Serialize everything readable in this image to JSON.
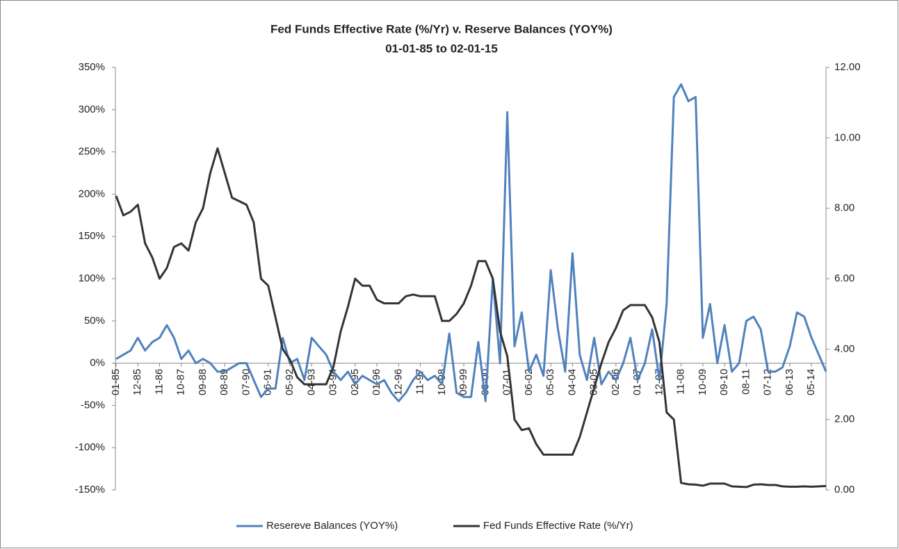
{
  "chart_data": {
    "type": "line",
    "title": "Fed Funds Effective Rate (%/Yr) v. Reserve Balances (YOY%)",
    "subtitle": "01-01-85 to 02-01-15",
    "categories": [
      "01-85",
      null,
      null,
      "12-85",
      null,
      null,
      "11-86",
      null,
      null,
      "10-87",
      null,
      null,
      "09-88",
      null,
      null,
      "08-89",
      null,
      null,
      "07-90",
      null,
      null,
      "06-91",
      null,
      null,
      "05-92",
      null,
      null,
      "04-93",
      null,
      null,
      "03-94",
      null,
      null,
      "02-95",
      null,
      null,
      "01-96",
      null,
      null,
      "12-96",
      null,
      null,
      "11-97",
      null,
      null,
      "10-98",
      null,
      null,
      "09-99",
      null,
      null,
      "08-00",
      null,
      null,
      "07-01",
      null,
      null,
      "06-02",
      null,
      null,
      "05-03",
      null,
      null,
      "04-04",
      null,
      null,
      "03-05",
      null,
      null,
      "02-06",
      null,
      null,
      "01-07",
      null,
      null,
      "12-07",
      null,
      null,
      "11-08",
      null,
      null,
      "10-09",
      null,
      null,
      "09-10",
      null,
      null,
      "08-11",
      null,
      null,
      "07-12",
      null,
      null,
      "06-13",
      null,
      null,
      "05-14",
      null,
      null
    ],
    "series": [
      {
        "name": "Resereve Balances (YOY%)",
        "color": "#4f81bd",
        "values": [
          5,
          10,
          15,
          30,
          15,
          25,
          30,
          45,
          30,
          5,
          15,
          0,
          5,
          0,
          -10,
          -10,
          -5,
          0,
          0,
          -20,
          -40,
          -30,
          -30,
          30,
          0,
          5,
          -20,
          30,
          20,
          10,
          -10,
          -20,
          -10,
          -25,
          -15,
          -20,
          -25,
          -20,
          -35,
          -45,
          -35,
          -20,
          -10,
          -20,
          -15,
          -25,
          35,
          -35,
          -40,
          -40,
          25,
          -45,
          100,
          0,
          297,
          20,
          60,
          -10,
          10,
          -15,
          110,
          40,
          -10,
          130,
          10,
          -20,
          30,
          -25,
          -10,
          -20,
          0,
          30,
          -20,
          0,
          40,
          -20,
          70,
          315,
          330,
          310,
          315,
          30,
          70,
          0,
          45,
          -10,
          0,
          50,
          55,
          40,
          -10,
          -10,
          -5,
          20,
          60,
          55,
          30,
          10,
          -10
        ]
      },
      {
        "name": "Fed Funds Effective Rate (%/Yr)",
        "color": "#333333",
        "axis": "y2",
        "values": [
          8.35,
          7.8,
          7.9,
          8.1,
          7.0,
          6.6,
          6.0,
          6.3,
          6.9,
          7.0,
          6.8,
          7.6,
          8.0,
          9.0,
          9.7,
          9.0,
          8.3,
          8.2,
          8.1,
          7.6,
          6.0,
          5.8,
          4.9,
          4.0,
          3.7,
          3.2,
          3.0,
          3.0,
          3.0,
          3.0,
          3.5,
          4.5,
          5.2,
          6.0,
          5.8,
          5.8,
          5.4,
          5.3,
          5.3,
          5.3,
          5.5,
          5.55,
          5.5,
          5.5,
          5.5,
          4.8,
          4.8,
          5.0,
          5.3,
          5.8,
          6.5,
          6.5,
          6.0,
          4.5,
          3.8,
          2.0,
          1.7,
          1.75,
          1.3,
          1.0,
          1.0,
          1.0,
          1.0,
          1.0,
          1.5,
          2.2,
          2.9,
          3.6,
          4.2,
          4.6,
          5.1,
          5.25,
          5.25,
          5.25,
          4.9,
          4.2,
          2.2,
          2.0,
          0.2,
          0.16,
          0.15,
          0.12,
          0.18,
          0.18,
          0.18,
          0.1,
          0.09,
          0.08,
          0.15,
          0.16,
          0.14,
          0.14,
          0.1,
          0.09,
          0.09,
          0.1,
          0.09,
          0.1,
          0.11
        ]
      }
    ],
    "ylim": [
      -150,
      350
    ],
    "yticks": [
      {
        "value": -150,
        "label": "-150%"
      },
      {
        "value": -100,
        "label": "-100%"
      },
      {
        "value": -50,
        "label": "-50%"
      },
      {
        "value": 0,
        "label": "0%"
      },
      {
        "value": 50,
        "label": "50%"
      },
      {
        "value": 100,
        "label": "100%"
      },
      {
        "value": 150,
        "label": "150%"
      },
      {
        "value": 200,
        "label": "200%"
      },
      {
        "value": 250,
        "label": "250%"
      },
      {
        "value": 300,
        "label": "300%"
      },
      {
        "value": 350,
        "label": "350%"
      }
    ],
    "y2lim": [
      0,
      12
    ],
    "y2ticks": [
      {
        "value": 0,
        "label": "0.00"
      },
      {
        "value": 2,
        "label": "2.00"
      },
      {
        "value": 4,
        "label": "4.00"
      },
      {
        "value": 6,
        "label": "6.00"
      },
      {
        "value": 8,
        "label": "8.00"
      },
      {
        "value": 10,
        "label": "10.00"
      },
      {
        "value": 12,
        "label": "12.00"
      }
    ],
    "legend": "bottom",
    "grid": false
  }
}
